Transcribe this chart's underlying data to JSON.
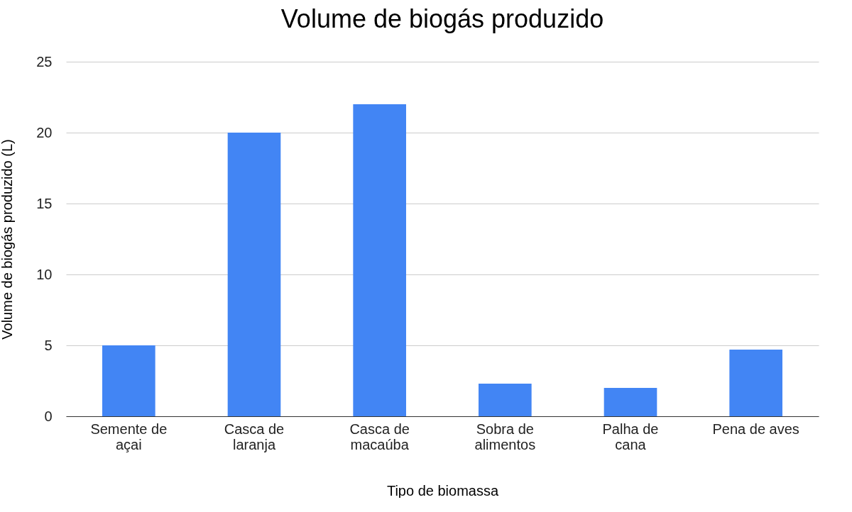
{
  "chart_data": {
    "type": "bar",
    "title": "Volume de biogás produzido",
    "xlabel": "Tipo de biomassa",
    "ylabel": "Volume de biogás produzido (L)",
    "categories": [
      "Semente de açai",
      "Casca de laranja",
      "Casca de macaúba",
      "Sobra de alimentos",
      "Palha de cana",
      "Pena de aves"
    ],
    "values": [
      5,
      20,
      22,
      2.3,
      2.0,
      4.7
    ],
    "color": "#4285f4",
    "ylim": [
      0,
      25
    ],
    "yticks": [
      0,
      5,
      10,
      15,
      20,
      25
    ],
    "grid": "y"
  }
}
